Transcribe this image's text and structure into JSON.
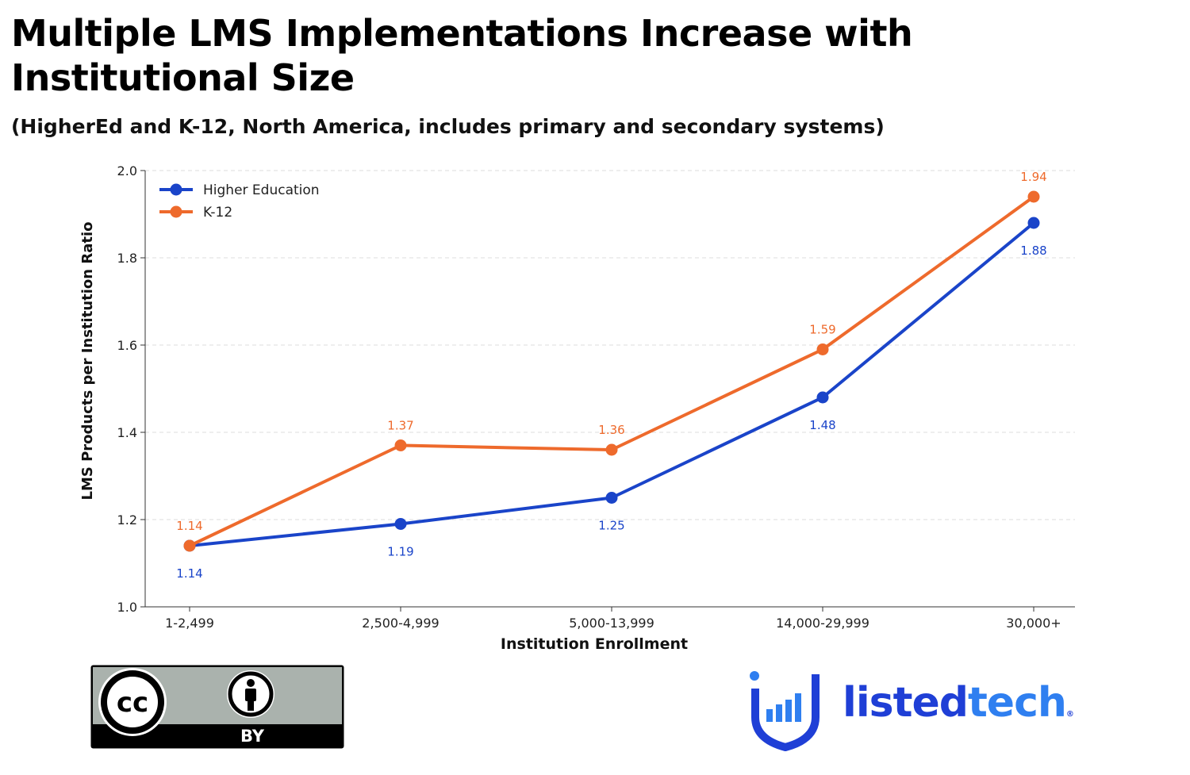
{
  "title": "Multiple LMS Implementations Increase with Institutional Size",
  "subtitle": "(HigherEd and K-12, North America, includes primary and secondary systems)",
  "colors": {
    "higher_education": "#1a44c9",
    "k12": "#ee6a2c",
    "grid": "#dddddd",
    "axis": "#333333",
    "brand": "#1f3fd6",
    "brand_accent": "#2f7ff0",
    "badge_bg": "#aab2ad"
  },
  "chart_data": {
    "type": "line",
    "categories": [
      "1-2,499",
      "2,500-4,999",
      "5,000-13,999",
      "14,000-29,999",
      "30,000+"
    ],
    "series": [
      {
        "name": "Higher Education",
        "values": [
          1.14,
          1.19,
          1.25,
          1.48,
          1.88
        ]
      },
      {
        "name": "K-12",
        "values": [
          1.14,
          1.37,
          1.36,
          1.59,
          1.94
        ]
      }
    ],
    "xlabel": "Institution Enrollment",
    "ylabel": "LMS Products per Institution Ratio",
    "ylim": [
      1.0,
      2.0
    ],
    "yticks": [
      "1.0",
      "1.2",
      "1.4",
      "1.6",
      "1.8",
      "2.0"
    ],
    "grid": "horizontal dashed",
    "legend": "top-left",
    "data_labels": true
  },
  "license_badge": {
    "cc_text": "cc",
    "by_text": "BY",
    "icons": [
      "creative-commons-icon",
      "attribution-person-icon"
    ]
  },
  "brand": {
    "name_part1": "listed",
    "name_part2": "tech",
    "registered": "®",
    "icon": "listedtech-shield-bars-icon"
  }
}
